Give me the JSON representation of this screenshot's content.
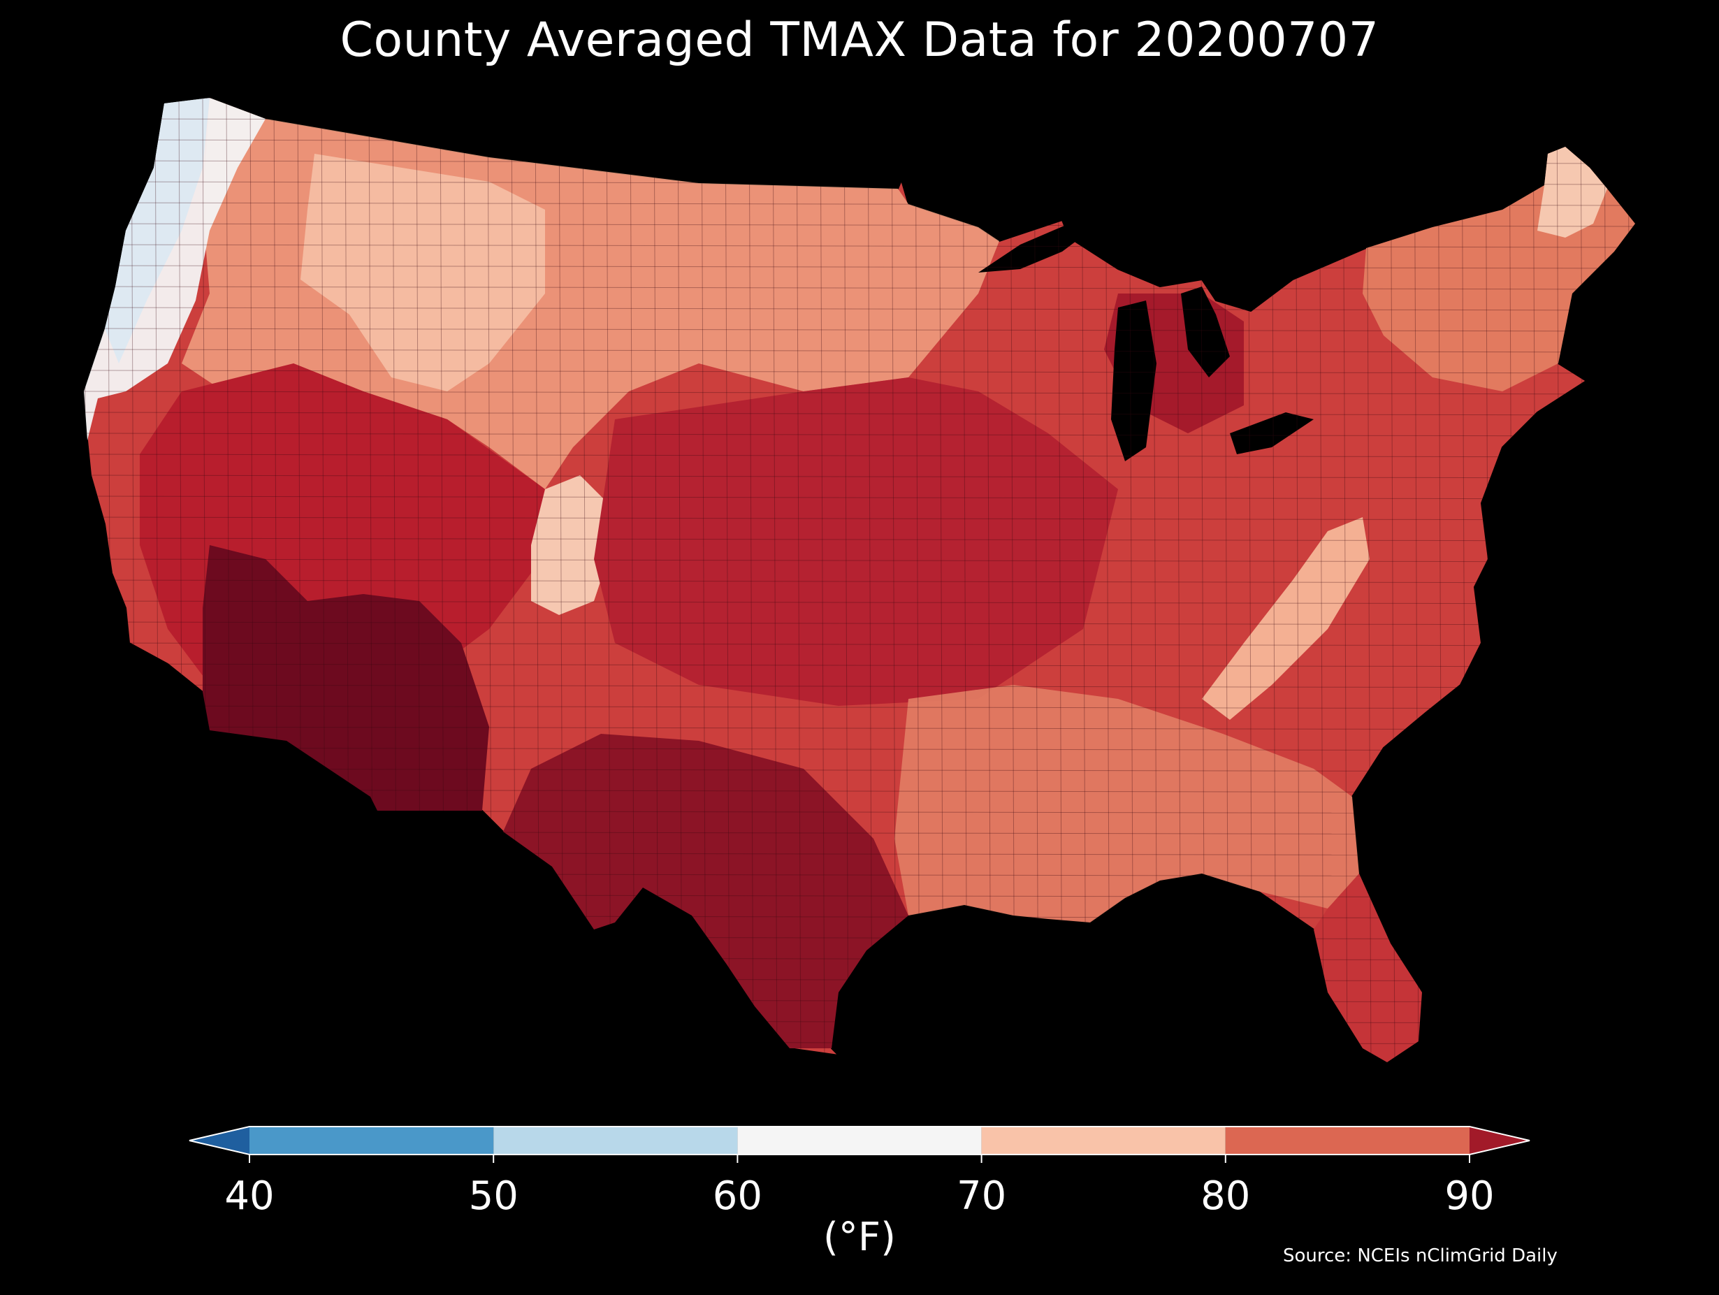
{
  "title": "County Averaged TMAX Data for 20200707",
  "colorbar": {
    "units_label": "(°F)",
    "ticks": [
      "40",
      "50",
      "60",
      "70",
      "80",
      "90"
    ],
    "bins": [
      {
        "from": 40,
        "to": 50,
        "color": "#4a98c9"
      },
      {
        "from": 50,
        "to": 60,
        "color": "#b8d8ea"
      },
      {
        "from": 60,
        "to": 70,
        "color": "#f5f5f5"
      },
      {
        "from": 70,
        "to": 80,
        "color": "#f9c3a9"
      },
      {
        "from": 80,
        "to": 90,
        "color": "#dc6752"
      }
    ],
    "under_color": "#1f5f9f",
    "over_color": "#a21a29"
  },
  "source": "Source: NCEIs nClimGrid Daily",
  "map": {
    "regions": [
      {
        "name": "pacific-northwest-coast",
        "bin": "50-70",
        "color": "#eef4f8"
      },
      {
        "name": "northern-plains-rockies",
        "bin": "70-80",
        "color": "#f2a98a"
      },
      {
        "name": "great-basin-southwest",
        "bin": "80-90",
        "color": "#c93a3a"
      },
      {
        "name": "desert-southwest",
        "bin": ">90",
        "color": "#6d0a1f"
      },
      {
        "name": "central-plains",
        "bin": ">90",
        "color": "#b11f2e"
      },
      {
        "name": "appalachians",
        "bin": "70-80",
        "color": "#f4ab8c"
      },
      {
        "name": "northeast",
        "bin": "80-90",
        "color": "#d9644f"
      },
      {
        "name": "southeast",
        "bin": "80-90",
        "color": "#e07a62"
      }
    ]
  }
}
